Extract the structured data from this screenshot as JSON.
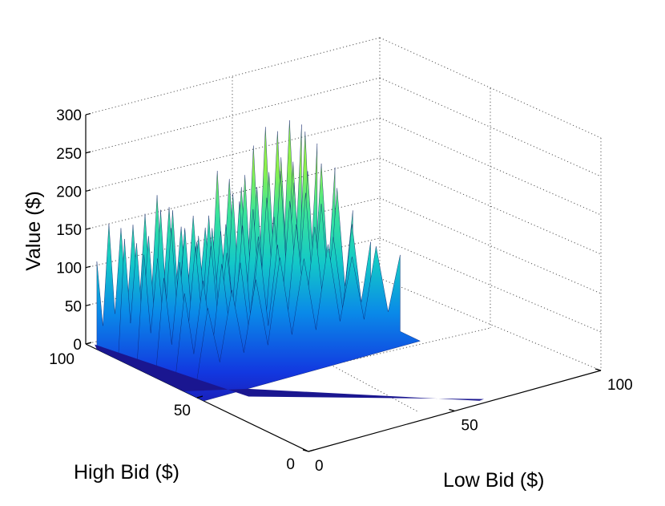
{
  "chart_data": {
    "type": "surface3d",
    "title": "",
    "xlabel": "Low Bid ($)",
    "ylabel": "High Bid ($)",
    "zlabel": "Value ($)",
    "xlim": [
      0,
      100
    ],
    "ylim": [
      0,
      100
    ],
    "zlim": [
      0,
      300
    ],
    "x_ticks": [
      "0",
      "50",
      "100"
    ],
    "y_ticks": [
      "0",
      "50",
      "100"
    ],
    "z_ticks": [
      "0",
      "50",
      "100",
      "150",
      "200",
      "250",
      "300"
    ],
    "grid": true,
    "colormap": "winter-to-green",
    "domain_note_visible": false,
    "peak_rows": [
      {
        "high_bid": 95,
        "values": [
          115,
          160,
          150,
          150,
          160,
          180,
          160,
          130,
          140,
          120,
          190,
          175,
          160,
          210,
          230,
          220,
          230,
          220
        ]
      },
      {
        "high_bid": 88,
        "values": [
          0,
          150,
          140,
          145,
          175,
          170,
          140,
          120,
          150,
          125,
          170,
          190,
          170,
          185,
          200,
          190,
          225,
          205
        ]
      },
      {
        "high_bid": 80,
        "values": [
          0,
          140,
          130,
          165,
          160,
          145,
          150,
          150,
          175,
          160,
          170,
          200,
          180,
          190,
          195,
          185
        ]
      },
      {
        "high_bid": 72,
        "values": [
          0,
          120,
          135,
          150,
          145,
          130,
          160,
          140,
          160,
          175,
          180,
          160,
          175,
          140
        ]
      },
      {
        "high_bid": 64,
        "values": [
          0,
          110,
          120,
          135,
          130,
          150,
          140,
          160,
          150,
          130,
          140,
          110
        ]
      },
      {
        "high_bid": 56,
        "values": [
          0,
          100,
          115,
          120,
          140,
          130,
          140,
          115,
          120,
          100
        ]
      }
    ]
  }
}
